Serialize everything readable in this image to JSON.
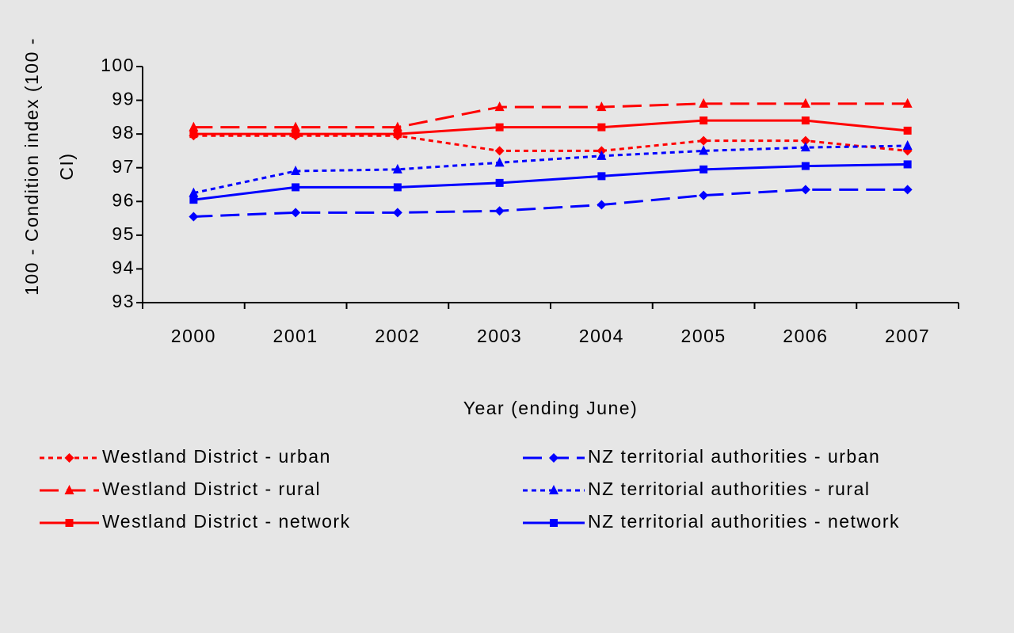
{
  "chart_data": {
    "type": "line",
    "xlabel": "Year (ending June)",
    "ylabel": "100 - Condition index (100 - CI)",
    "categories": [
      "2000",
      "2001",
      "2002",
      "2003",
      "2004",
      "2005",
      "2006",
      "2007"
    ],
    "ylim": [
      93,
      100
    ],
    "yticks": [
      93,
      94,
      95,
      96,
      97,
      98,
      99,
      100
    ],
    "series": [
      {
        "name": "Westland District - urban",
        "color": "#ff0000",
        "dash": "dotted",
        "marker": "diamond",
        "values": [
          97.95,
          97.95,
          97.95,
          97.5,
          97.5,
          97.8,
          97.8,
          97.5
        ]
      },
      {
        "name": "Westland District - rural",
        "color": "#ff0000",
        "dash": "dashed",
        "marker": "triangle",
        "values": [
          98.2,
          98.2,
          98.2,
          98.8,
          98.8,
          98.9,
          98.9,
          98.9
        ]
      },
      {
        "name": "Westland District - network",
        "color": "#ff0000",
        "dash": "solid",
        "marker": "square",
        "values": [
          98.0,
          98.0,
          98.0,
          98.2,
          98.2,
          98.4,
          98.4,
          98.1
        ]
      },
      {
        "name": "NZ territorial authorities - urban",
        "color": "#0000ff",
        "dash": "dashed",
        "marker": "diamond",
        "values": [
          95.55,
          95.67,
          95.67,
          95.72,
          95.9,
          96.18,
          96.35,
          96.35
        ]
      },
      {
        "name": "NZ territorial authorities - rural",
        "color": "#0000ff",
        "dash": "dotted",
        "marker": "triangle",
        "values": [
          96.25,
          96.9,
          96.95,
          97.15,
          97.35,
          97.5,
          97.6,
          97.65
        ]
      },
      {
        "name": "NZ territorial authorities - network",
        "color": "#0000ff",
        "dash": "solid",
        "marker": "square",
        "values": [
          96.05,
          96.42,
          96.42,
          96.55,
          96.75,
          96.95,
          97.05,
          97.1
        ]
      }
    ]
  }
}
